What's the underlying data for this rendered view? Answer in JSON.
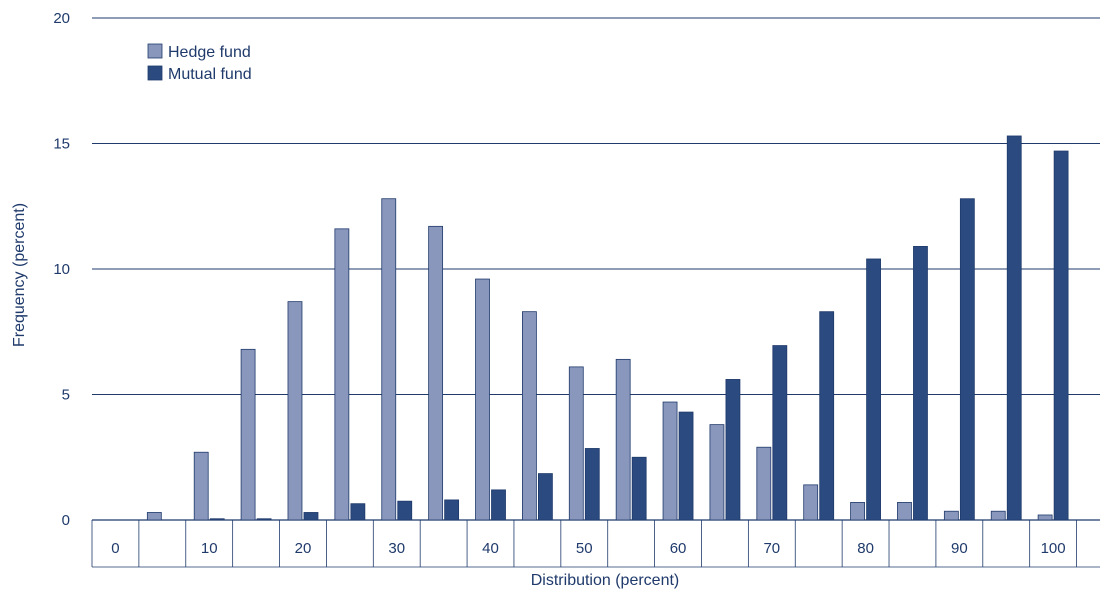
{
  "chart_data": {
    "type": "bar",
    "xlabel": "Distribution (percent)",
    "ylabel": "Frequency (percent)",
    "ylim": [
      0,
      20
    ],
    "yticks": [
      "0",
      "5",
      "10",
      "15",
      "20"
    ],
    "xtick_labels": [
      "0",
      "10",
      "20",
      "30",
      "40",
      "50",
      "60",
      "70",
      "80",
      "90",
      "100"
    ],
    "categories": [
      "0",
      "5",
      "10",
      "15",
      "20",
      "25",
      "30",
      "35",
      "40",
      "45",
      "50",
      "55",
      "60",
      "65",
      "70",
      "75",
      "80",
      "85",
      "90",
      "95",
      "100"
    ],
    "grid": true,
    "legend_position": "top-left",
    "series": [
      {
        "name": "Hedge fund",
        "color": "#8a97bd",
        "values": [
          0,
          0.3,
          2.7,
          6.8,
          8.7,
          11.6,
          12.8,
          11.7,
          9.6,
          8.3,
          6.1,
          6.4,
          4.7,
          3.8,
          2.9,
          1.4,
          0.7,
          0.7,
          0.35,
          0.35,
          0.2
        ]
      },
      {
        "name": "Mutual fund",
        "color": "#2b4a80",
        "values": [
          0,
          0,
          0.05,
          0.05,
          0.3,
          0.65,
          0.75,
          0.8,
          1.2,
          1.85,
          2.85,
          2.5,
          4.3,
          5.6,
          6.95,
          8.3,
          10.4,
          10.9,
          12.8,
          15.3,
          14.7
        ]
      }
    ]
  }
}
